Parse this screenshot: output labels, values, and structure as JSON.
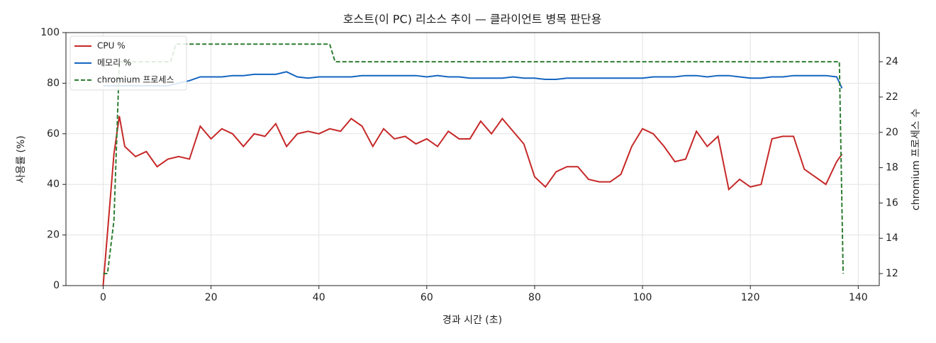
{
  "chart_data": {
    "type": "line",
    "title": "호스트(이 PC) 리소스 추이 — 클라이언트 병목 판단용",
    "x_label": "경과 시간 (초)",
    "y_label": "사용률 (%)",
    "y2_label": "chromium 프로세스 수",
    "x": [
      0,
      2,
      3,
      4,
      6,
      8,
      10,
      12,
      14,
      16,
      18,
      20,
      22,
      24,
      26,
      28,
      30,
      32,
      34,
      36,
      38,
      40,
      42,
      44,
      46,
      48,
      50,
      52,
      54,
      56,
      58,
      60,
      62,
      64,
      66,
      68,
      70,
      72,
      74,
      76,
      78,
      80,
      82,
      84,
      86,
      88,
      90,
      92,
      94,
      96,
      98,
      100,
      102,
      104,
      106,
      108,
      110,
      112,
      114,
      116,
      118,
      120,
      122,
      124,
      126,
      128,
      130,
      132,
      134,
      136,
      137
    ],
    "series": [
      {
        "name": "CPU %",
        "color": "#c62828",
        "dash": false,
        "values": [
          0,
          52,
          67,
          55,
          51,
          53,
          47,
          50,
          51,
          50,
          63,
          58,
          62,
          60,
          55,
          60,
          59,
          64,
          55,
          60,
          61,
          60,
          62,
          61,
          66,
          63,
          55,
          62,
          58,
          59,
          56,
          58,
          55,
          61,
          58,
          58,
          65,
          60,
          66,
          61,
          56,
          43,
          39,
          45,
          47,
          47,
          42,
          41,
          41,
          44,
          55,
          62,
          60,
          55,
          49,
          50,
          61,
          55,
          59,
          38,
          42,
          39,
          40,
          58,
          59,
          59,
          46,
          43,
          40,
          49,
          52
        ]
      },
      {
        "name": "메모리 %",
        "color": "#1565c0",
        "dash": false,
        "values": [
          79,
          79,
          79,
          79,
          79,
          79,
          79,
          79,
          80,
          81,
          82.5,
          82.5,
          82.5,
          83,
          83,
          83.5,
          83.5,
          83.5,
          84.5,
          82.5,
          82,
          82.5,
          82.5,
          82.5,
          82.5,
          83,
          83,
          83,
          83,
          83,
          83,
          82.5,
          83,
          82.5,
          82.5,
          82,
          82,
          82,
          82,
          82.5,
          82,
          82,
          81.5,
          81.5,
          82,
          82,
          82,
          82,
          82,
          82,
          82,
          82,
          82.5,
          82.5,
          82.5,
          83,
          83,
          82.5,
          83,
          83,
          82.5,
          82,
          82,
          82.5,
          82.5,
          83,
          83,
          83,
          83,
          82.5,
          78
        ]
      },
      {
        "name": "chromium 프로세스",
        "color": "#2e7d32",
        "dash": true,
        "axis": "y2",
        "x": [
          0,
          0.8,
          2,
          3,
          4,
          12.5,
          13.5,
          42,
          43,
          136.5,
          137.2
        ],
        "values": [
          12,
          12,
          15,
          24,
          24,
          24,
          25,
          25,
          24,
          24,
          12
        ]
      }
    ],
    "xlim": [
      -6.9,
      143.9
    ],
    "xticks": [
      0,
      20,
      40,
      60,
      80,
      100,
      120,
      140
    ],
    "ylim": [
      0,
      100
    ],
    "yticks": [
      0,
      20,
      40,
      60,
      80,
      100
    ],
    "y2lim": [
      11.32,
      25.65
    ],
    "y2ticks": [
      12,
      14,
      16,
      18,
      20,
      22,
      24
    ],
    "grid": true,
    "legend": "upper-left"
  }
}
